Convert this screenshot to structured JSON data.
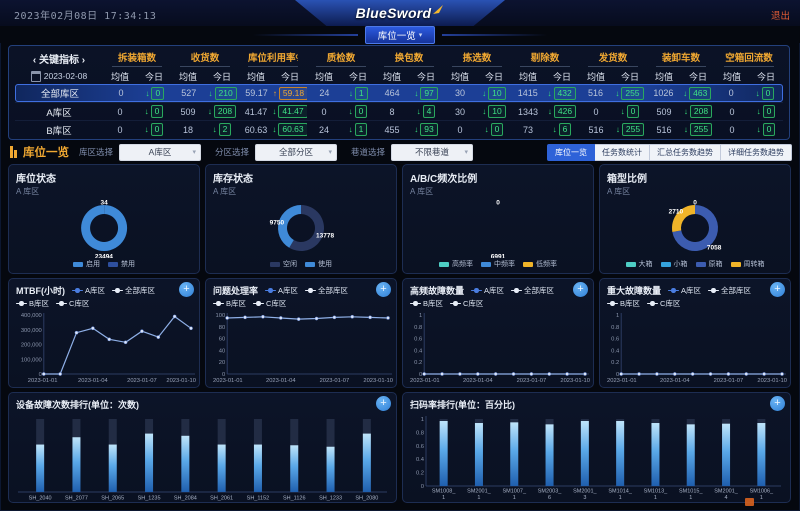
{
  "icons": {
    "plus": "+",
    "caret": "▾"
  },
  "colors": {
    "accent_orange": "#f0a832",
    "green": "#35e07a",
    "blue": "#3f8ad8",
    "dark_navy_slice": "#2a3861",
    "teal": "#4ecdc4",
    "yellow": "#f0b429",
    "slate_blue": "#3c5cb0",
    "active_tab_blue": "#2e62d8",
    "line_color": "#8fb0e8",
    "bar_track": "#222c44"
  },
  "header": {
    "datetime": "2023年02月08日 17:34:13",
    "logo_text": "BlueSword",
    "exit_label": "退出",
    "page_tab_label": "库位一览"
  },
  "kpi_table": {
    "title": "‹ 关键指标 ›",
    "date": "2023-02-08",
    "avg_label": "均值",
    "today_label": "今日",
    "columns": [
      "拆装箱数",
      "收货数",
      "库位利用率%",
      "质检数",
      "换包数",
      "拣选数",
      "剔除数",
      "发货数",
      "装卸车数",
      "空箱回流数"
    ],
    "rows": [
      {
        "name": "全部库区",
        "selected": true,
        "cells": [
          [
            "0",
            "0",
            "down"
          ],
          [
            "527",
            "210",
            "down"
          ],
          [
            "59.17",
            "59.18",
            "up"
          ],
          [
            "24",
            "1",
            "down"
          ],
          [
            "464",
            "97",
            "down"
          ],
          [
            "30",
            "10",
            "down"
          ],
          [
            "1415",
            "432",
            "down"
          ],
          [
            "516",
            "255",
            "down"
          ],
          [
            "1026",
            "463",
            "down"
          ],
          [
            "0",
            "0",
            "down"
          ]
        ]
      },
      {
        "name": "A库区",
        "selected": false,
        "cells": [
          [
            "0",
            "0",
            "down"
          ],
          [
            "509",
            "208",
            "down"
          ],
          [
            "41.47",
            "41.47",
            "down"
          ],
          [
            "0",
            "0",
            "down"
          ],
          [
            "8",
            "4",
            "down"
          ],
          [
            "30",
            "10",
            "down"
          ],
          [
            "1343",
            "426",
            "down"
          ],
          [
            "0",
            "0",
            "down"
          ],
          [
            "509",
            "208",
            "down"
          ],
          [
            "0",
            "0",
            "down"
          ]
        ]
      },
      {
        "name": "B库区",
        "selected": false,
        "cells": [
          [
            "0",
            "0",
            "down"
          ],
          [
            "18",
            "2",
            "down"
          ],
          [
            "60.63",
            "60.63",
            "down"
          ],
          [
            "24",
            "1",
            "down"
          ],
          [
            "455",
            "93",
            "down"
          ],
          [
            "0",
            "0",
            "down"
          ],
          [
            "73",
            "6",
            "down"
          ],
          [
            "516",
            "255",
            "down"
          ],
          [
            "516",
            "255",
            "down"
          ],
          [
            "0",
            "0",
            "down"
          ]
        ]
      }
    ]
  },
  "filter_bar": {
    "title": "库位一览",
    "filters": [
      {
        "label": "库区选择",
        "value": "A库区"
      },
      {
        "label": "分区选择",
        "value": "全部分区"
      },
      {
        "label": "巷道选择",
        "value": "不限巷道"
      }
    ],
    "view_tabs": [
      {
        "label": "库位一览",
        "active": true
      },
      {
        "label": "任务数统计",
        "active": false
      },
      {
        "label": "汇总任务数趋势",
        "active": false
      },
      {
        "label": "详细任务数趋势",
        "active": false
      }
    ]
  },
  "chart_data": [
    {
      "id": "donut-location-status",
      "type": "pie",
      "title": "库位状态",
      "subtitle": "A 库区",
      "slices": [
        {
          "name": "禁用",
          "value": 34,
          "color": "#2e4f9e",
          "label": true
        },
        {
          "name": "启用",
          "value": 23494,
          "color": "#3f8ad8",
          "label": true
        }
      ],
      "legend": [
        {
          "name": "启用",
          "color": "#3f8ad8"
        },
        {
          "name": "禁用",
          "color": "#2e4f9e"
        }
      ]
    },
    {
      "id": "donut-stock-status",
      "type": "pie",
      "title": "库存状态",
      "subtitle": "A 库区",
      "slices": [
        {
          "name": "空闲",
          "value": 13778,
          "color": "#2a3861",
          "label": true
        },
        {
          "name": "使用",
          "value": 9750,
          "color": "#3f8ad8",
          "label": true
        }
      ],
      "legend": [
        {
          "name": "空闲",
          "color": "#2a3861"
        },
        {
          "name": "使用",
          "color": "#3f8ad8"
        }
      ]
    },
    {
      "id": "donut-abc-frequency",
      "type": "pie",
      "title": "A/B/C频次比例",
      "subtitle": "A 库区",
      "slices": [
        {
          "name": "高频率",
          "value": 0,
          "color": "#4ecdc4",
          "label": true
        },
        {
          "name": "中频率",
          "value": 6991,
          "color": "#3f8ad8",
          "label": true
        },
        {
          "name": "低频率",
          "value": 0,
          "color": "#f0b429",
          "label": false
        }
      ],
      "legend": [
        {
          "name": "高频率",
          "color": "#4ecdc4"
        },
        {
          "name": "中频率",
          "color": "#3f8ad8"
        },
        {
          "name": "低频率",
          "color": "#f0b429"
        }
      ]
    },
    {
      "id": "donut-box-type",
      "type": "pie",
      "title": "箱型比例",
      "subtitle": "A 库区",
      "slices": [
        {
          "name": "大箱",
          "value": 0,
          "color": "#4ecdc4",
          "label": true
        },
        {
          "name": "小箱",
          "value": 0,
          "color": "#35a2dc",
          "label": false
        },
        {
          "name": "原箱",
          "value": 7058,
          "color": "#3c5cb0",
          "label": true
        },
        {
          "name": "周转箱",
          "value": 2710,
          "color": "#f0b429",
          "label": true
        }
      ],
      "legend": [
        {
          "name": "大箱",
          "color": "#4ecdc4"
        },
        {
          "name": "小箱",
          "color": "#35a2dc"
        },
        {
          "name": "原箱",
          "color": "#3c5cb0"
        },
        {
          "name": "周转箱",
          "color": "#f0b429"
        }
      ]
    },
    {
      "id": "line-mtbf",
      "type": "line",
      "title": "MTBF(小时)",
      "legend": [
        "A库区",
        "全部库区",
        "B库区",
        "C库区"
      ],
      "legend_colors": [
        "#4a7de0",
        "#e8eef8",
        "#e8eef8",
        "#e8eef8"
      ],
      "x": [
        "2023-01-01",
        "2023-01-02",
        "2023-01-03",
        "2023-01-04",
        "2023-01-05",
        "2023-01-06",
        "2023-01-07",
        "2023-01-08",
        "2023-01-09",
        "2023-01-10"
      ],
      "xticks": [
        "2023-01-01",
        "2023-01-04",
        "2023-01-07",
        "2023-01-10"
      ],
      "values": [
        0,
        0,
        280000,
        310000,
        235000,
        215000,
        290000,
        250000,
        390000,
        310000
      ],
      "ylim": [
        0,
        400000
      ],
      "yticks": [
        [
          0,
          "0"
        ],
        [
          100000,
          "100,000"
        ],
        [
          200000,
          "200,000"
        ],
        [
          300000,
          "300,000"
        ],
        [
          400000,
          "400,000"
        ]
      ]
    },
    {
      "id": "line-issue-rate",
      "type": "line",
      "title": "问题处理率",
      "legend": [
        "A库区",
        "全部库区",
        "B库区",
        "C库区"
      ],
      "legend_colors": [
        "#4a7de0",
        "#e8eef8",
        "#e8eef8",
        "#e8eef8"
      ],
      "x": [
        "2023-01-01",
        "2023-01-02",
        "2023-01-03",
        "2023-01-04",
        "2023-01-05",
        "2023-01-06",
        "2023-01-07",
        "2023-01-08",
        "2023-01-09",
        "2023-01-10"
      ],
      "xticks": [
        "2023-01-01",
        "2023-01-04",
        "2023-01-07",
        "2023-01-10"
      ],
      "values": [
        95,
        96,
        97,
        95,
        93,
        94,
        96,
        97,
        96,
        95
      ],
      "ylim": [
        0,
        100
      ],
      "yticks": [
        [
          0,
          "0"
        ],
        [
          20,
          "20"
        ],
        [
          40,
          "40"
        ],
        [
          60,
          "60"
        ],
        [
          80,
          "80"
        ],
        [
          100,
          "100"
        ]
      ]
    },
    {
      "id": "line-high-freq-faults",
      "type": "line",
      "title": "高频故障数量",
      "legend": [
        "A库区",
        "全部库区",
        "B库区",
        "C库区"
      ],
      "legend_colors": [
        "#4a7de0",
        "#e8eef8",
        "#e8eef8",
        "#e8eef8"
      ],
      "x": [
        "2023-01-01",
        "2023-01-02",
        "2023-01-03",
        "2023-01-04",
        "2023-01-05",
        "2023-01-06",
        "2023-01-07",
        "2023-01-08",
        "2023-01-09",
        "2023-01-10"
      ],
      "xticks": [
        "2023-01-01",
        "2023-01-04",
        "2023-01-07",
        "2023-01-10"
      ],
      "values": [
        0,
        0,
        0,
        0,
        0,
        0,
        0,
        0,
        0,
        0
      ],
      "ylim": [
        0,
        1
      ],
      "yticks": [
        [
          0,
          "0"
        ],
        [
          0.2,
          "0.2"
        ],
        [
          0.4,
          "0.4"
        ],
        [
          0.6,
          "0.6"
        ],
        [
          0.8,
          "0.8"
        ],
        [
          1,
          "1"
        ]
      ]
    },
    {
      "id": "line-major-faults",
      "type": "line",
      "title": "重大故障数量",
      "legend": [
        "A库区",
        "全部库区",
        "B库区",
        "C库区"
      ],
      "legend_colors": [
        "#4a7de0",
        "#e8eef8",
        "#e8eef8",
        "#e8eef8"
      ],
      "x": [
        "2023-01-01",
        "2023-01-02",
        "2023-01-03",
        "2023-01-04",
        "2023-01-05",
        "2023-01-06",
        "2023-01-07",
        "2023-01-08",
        "2023-01-09",
        "2023-01-10"
      ],
      "xticks": [
        "2023-01-01",
        "2023-01-04",
        "2023-01-07",
        "2023-01-10"
      ],
      "values": [
        0,
        0,
        0,
        0,
        0,
        0,
        0,
        0,
        0,
        0
      ],
      "ylim": [
        0,
        1
      ],
      "yticks": [
        [
          0,
          "0"
        ],
        [
          0.2,
          "0.2"
        ],
        [
          0.4,
          "0.4"
        ],
        [
          0.6,
          "0.6"
        ],
        [
          0.8,
          "0.8"
        ],
        [
          1,
          "1"
        ]
      ]
    },
    {
      "id": "bar-device-faults",
      "type": "bar",
      "title": "设备故障次数排行(单位：次数)",
      "categories": [
        "SH_2040",
        "SH_2077",
        "SH_2065",
        "SH_1235",
        "SH_2084",
        "SH_2061",
        "SH_1152",
        "SH_1126",
        "SH_1233",
        "SH_2080"
      ],
      "values": [
        0.65,
        0.75,
        0.65,
        0.8,
        0.77,
        0.65,
        0.65,
        0.64,
        0.62,
        0.8
      ],
      "ylim": [
        0,
        1
      ],
      "yticks": [],
      "track": true,
      "two_line_labels": false
    },
    {
      "id": "bar-scan-rate",
      "type": "bar",
      "title": "扫码率排行(单位：百分比)",
      "categories": [
        "SM1008_1",
        "SM2001_1",
        "SM1007_1",
        "SM2003_6",
        "SM2001_3",
        "SM1014_1",
        "SM1013_1",
        "SM1015_1",
        "SM2001_4",
        "SM1006_1"
      ],
      "values": [
        0.97,
        0.94,
        0.95,
        0.92,
        0.97,
        0.97,
        0.94,
        0.92,
        0.93,
        0.94
      ],
      "ylim": [
        0,
        1
      ],
      "yticks": [
        [
          0,
          "0"
        ],
        [
          0.2,
          "0.2"
        ],
        [
          0.4,
          "0.4"
        ],
        [
          0.6,
          "0.6"
        ],
        [
          0.8,
          "0.8"
        ],
        [
          1,
          "1"
        ]
      ],
      "track": true,
      "two_line_labels": true
    }
  ]
}
